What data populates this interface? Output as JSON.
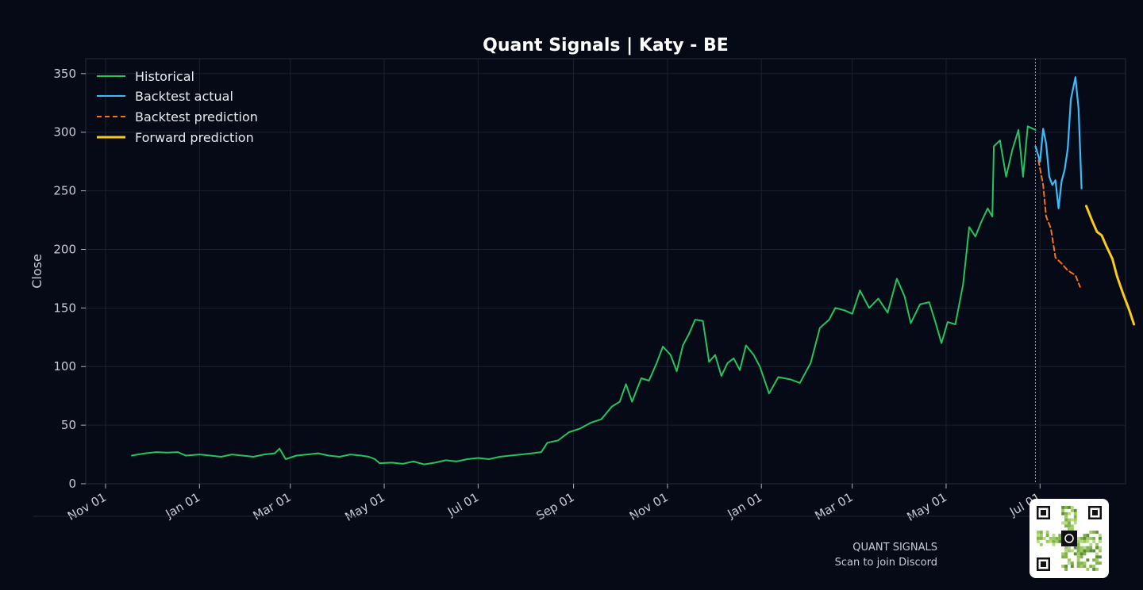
{
  "chart_data": {
    "type": "line",
    "title": "Quant Signals | Katy - BE",
    "xlabel": "",
    "ylabel": "Close",
    "ylim": [
      0,
      362
    ],
    "yticks": [
      0,
      50,
      100,
      150,
      200,
      250,
      300,
      350
    ],
    "xticks": [
      {
        "date": "2024-11-01",
        "label": "Nov 01"
      },
      {
        "date": "2025-01-01",
        "label": "Jan 01"
      },
      {
        "date": "2025-03-01",
        "label": "Mar 01"
      },
      {
        "date": "2025-05-01",
        "label": "May 01"
      },
      {
        "date": "2025-07-01",
        "label": "Jul 01"
      },
      {
        "date": "2025-09-01",
        "label": "Sep 01"
      },
      {
        "date": "2025-11-01",
        "label": "Nov 01"
      },
      {
        "date": "2026-01-01",
        "label": "Jan 01"
      },
      {
        "date": "2026-03-01",
        "label": "Mar 01"
      },
      {
        "date": "2026-05-01",
        "label": "May 01"
      },
      {
        "date": "2026-07-01",
        "label": "Jul 01"
      }
    ],
    "grid": true,
    "legend_position": "top-left",
    "split_date": "2026-06-28",
    "series": [
      {
        "name": "Historical",
        "color": "#22c55e",
        "style": "solid",
        "points": [
          [
            "2024-11-18",
            24
          ],
          [
            "2024-11-22",
            25
          ],
          [
            "2024-11-27",
            26
          ],
          [
            "2024-12-04",
            27
          ],
          [
            "2024-12-11",
            26.5
          ],
          [
            "2024-12-18",
            27
          ],
          [
            "2024-12-23",
            24
          ],
          [
            "2025-01-01",
            25
          ],
          [
            "2025-01-08",
            24
          ],
          [
            "2025-01-15",
            23
          ],
          [
            "2025-01-22",
            25
          ],
          [
            "2025-01-29",
            24
          ],
          [
            "2025-02-05",
            23
          ],
          [
            "2025-02-12",
            25
          ],
          [
            "2025-02-19",
            26
          ],
          [
            "2025-02-22",
            30
          ],
          [
            "2025-02-26",
            21
          ],
          [
            "2025-03-05",
            24
          ],
          [
            "2025-03-12",
            25
          ],
          [
            "2025-03-19",
            26
          ],
          [
            "2025-03-26",
            24
          ],
          [
            "2025-04-02",
            23
          ],
          [
            "2025-04-09",
            25
          ],
          [
            "2025-04-16",
            24
          ],
          [
            "2025-04-21",
            23
          ],
          [
            "2025-04-25",
            21
          ],
          [
            "2025-04-28",
            17.5
          ],
          [
            "2025-05-06",
            18
          ],
          [
            "2025-05-13",
            17
          ],
          [
            "2025-05-20",
            19
          ],
          [
            "2025-05-27",
            16.5
          ],
          [
            "2025-06-03",
            18
          ],
          [
            "2025-06-10",
            20
          ],
          [
            "2025-06-17",
            19
          ],
          [
            "2025-06-24",
            21
          ],
          [
            "2025-07-01",
            22
          ],
          [
            "2025-07-08",
            21
          ],
          [
            "2025-07-15",
            23
          ],
          [
            "2025-07-22",
            24
          ],
          [
            "2025-07-29",
            25
          ],
          [
            "2025-08-05",
            26
          ],
          [
            "2025-08-11",
            27
          ],
          [
            "2025-08-15",
            35
          ],
          [
            "2025-08-22",
            37
          ],
          [
            "2025-08-29",
            44
          ],
          [
            "2025-09-05",
            47
          ],
          [
            "2025-09-12",
            52
          ],
          [
            "2025-09-19",
            55
          ],
          [
            "2025-09-26",
            66
          ],
          [
            "2025-10-01",
            70
          ],
          [
            "2025-10-05",
            85
          ],
          [
            "2025-10-09",
            70
          ],
          [
            "2025-10-15",
            90
          ],
          [
            "2025-10-20",
            88
          ],
          [
            "2025-10-25",
            103
          ],
          [
            "2025-10-29",
            117
          ],
          [
            "2025-11-03",
            110
          ],
          [
            "2025-11-07",
            96
          ],
          [
            "2025-11-11",
            118
          ],
          [
            "2025-11-15",
            128
          ],
          [
            "2025-11-19",
            140
          ],
          [
            "2025-11-24",
            139
          ],
          [
            "2025-11-28",
            104
          ],
          [
            "2025-12-02",
            110
          ],
          [
            "2025-12-06",
            92
          ],
          [
            "2025-12-10",
            103
          ],
          [
            "2025-12-14",
            107
          ],
          [
            "2025-12-18",
            97
          ],
          [
            "2025-12-22",
            118
          ],
          [
            "2025-12-27",
            110
          ],
          [
            "2025-12-31",
            100
          ],
          [
            "2026-01-06",
            77
          ],
          [
            "2026-01-12",
            91
          ],
          [
            "2026-01-20",
            89
          ],
          [
            "2026-01-26",
            86
          ],
          [
            "2026-02-02",
            103
          ],
          [
            "2026-02-08",
            133
          ],
          [
            "2026-02-14",
            140
          ],
          [
            "2026-02-18",
            150
          ],
          [
            "2026-02-24",
            148
          ],
          [
            "2026-03-01",
            145
          ],
          [
            "2026-03-06",
            165
          ],
          [
            "2026-03-12",
            150
          ],
          [
            "2026-03-18",
            158
          ],
          [
            "2026-03-24",
            146
          ],
          [
            "2026-03-30",
            175
          ],
          [
            "2026-04-04",
            160
          ],
          [
            "2026-04-08",
            137
          ],
          [
            "2026-04-14",
            153
          ],
          [
            "2026-04-20",
            155
          ],
          [
            "2026-04-24",
            138
          ],
          [
            "2026-04-28",
            120
          ],
          [
            "2026-05-02",
            138
          ],
          [
            "2026-05-07",
            136
          ],
          [
            "2026-05-12",
            170
          ],
          [
            "2026-05-16",
            219
          ],
          [
            "2026-05-20",
            211
          ],
          [
            "2026-05-24",
            224
          ],
          [
            "2026-05-28",
            235
          ],
          [
            "2026-05-31",
            228
          ],
          [
            "2026-06-01",
            288
          ],
          [
            "2026-06-05",
            293
          ],
          [
            "2026-06-09",
            262
          ],
          [
            "2026-06-13",
            285
          ],
          [
            "2026-06-17",
            302
          ],
          [
            "2026-06-20",
            262
          ],
          [
            "2026-06-23",
            305
          ],
          [
            "2026-06-28",
            302
          ]
        ]
      },
      {
        "name": "Backtest actual",
        "color": "#38bdf8",
        "style": "solid",
        "points": [
          [
            "2026-06-28",
            288
          ],
          [
            "2026-07-01",
            275
          ],
          [
            "2026-07-03",
            303
          ],
          [
            "2026-07-05",
            290
          ],
          [
            "2026-07-07",
            262
          ],
          [
            "2026-07-09",
            255
          ],
          [
            "2026-07-11",
            259
          ],
          [
            "2026-07-13",
            235
          ],
          [
            "2026-07-15",
            258
          ],
          [
            "2026-07-17",
            268
          ],
          [
            "2026-07-19",
            286
          ],
          [
            "2026-07-21",
            328
          ],
          [
            "2026-07-24",
            347
          ],
          [
            "2026-07-26",
            320
          ],
          [
            "2026-07-28",
            252
          ]
        ]
      },
      {
        "name": "Backtest prediction",
        "color": "#f97316",
        "style": "dashed",
        "points": [
          [
            "2026-06-30",
            276
          ],
          [
            "2026-07-03",
            255
          ],
          [
            "2026-07-05",
            228
          ],
          [
            "2026-07-08",
            218
          ],
          [
            "2026-07-11",
            193
          ],
          [
            "2026-07-15",
            188
          ],
          [
            "2026-07-19",
            182
          ],
          [
            "2026-07-24",
            178
          ],
          [
            "2026-07-27",
            168
          ]
        ]
      },
      {
        "name": "Forward prediction",
        "color": "#facc15",
        "style": "solid",
        "points": [
          [
            "2026-07-31",
            237
          ],
          [
            "2026-08-04",
            224
          ],
          [
            "2026-08-07",
            215
          ],
          [
            "2026-08-10",
            212
          ],
          [
            "2026-08-13",
            203
          ],
          [
            "2026-08-17",
            192
          ],
          [
            "2026-08-20",
            177
          ],
          [
            "2026-08-24",
            162
          ],
          [
            "2026-08-28",
            148
          ],
          [
            "2026-08-31",
            136
          ]
        ]
      }
    ]
  },
  "footer": {
    "brand": "QUANT SIGNALS",
    "caption": "Scan to join Discord"
  }
}
